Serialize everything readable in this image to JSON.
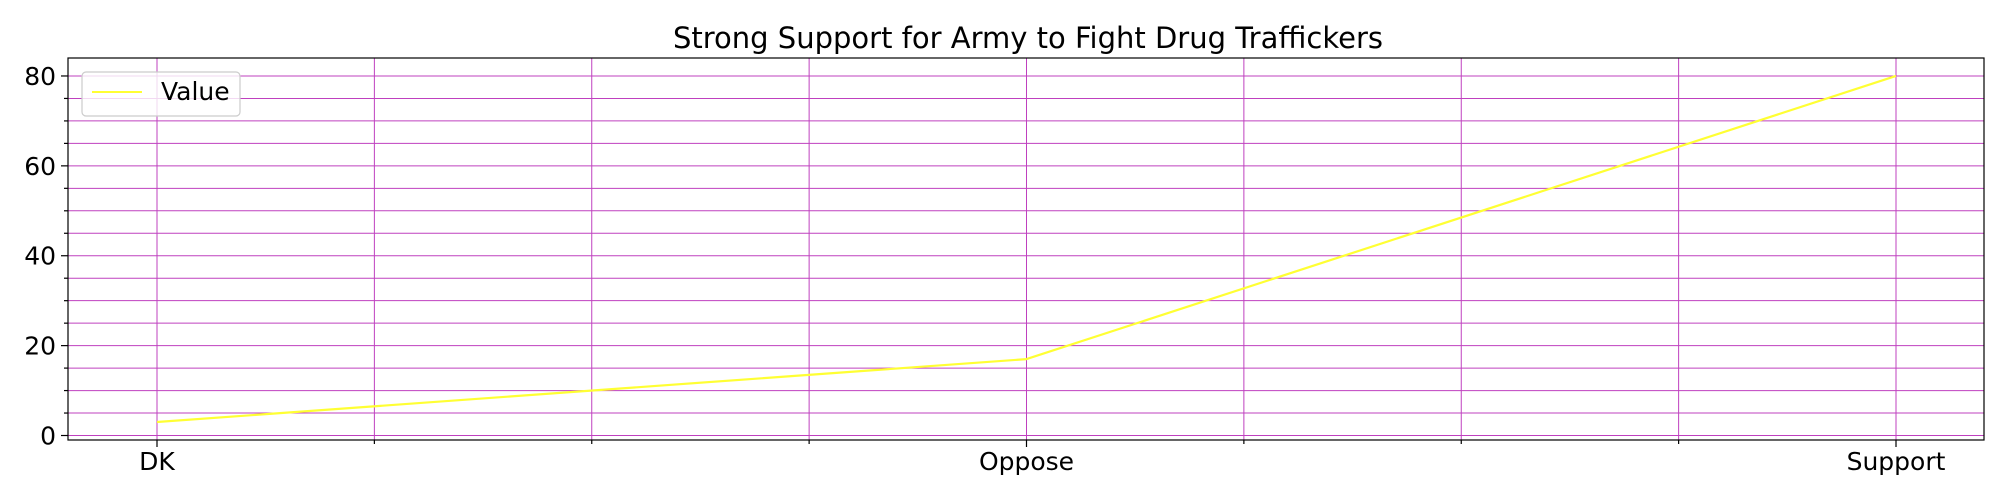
{
  "chart_data": {
    "type": "line",
    "title": "Strong Support for Army to Fight Drug Traffickers",
    "categories": [
      "DK",
      "Oppose",
      "Support"
    ],
    "series": [
      {
        "name": "Value",
        "values": [
          3,
          17,
          80
        ],
        "color": "#ffff33"
      }
    ],
    "xlabel": "",
    "ylabel": "",
    "ylim": [
      -1,
      84
    ],
    "yticks": [
      0,
      20,
      40,
      60,
      80
    ],
    "y_minor_step": 5,
    "x_minor_per_interval": 4,
    "grid": true,
    "grid_color": "#bf40bf",
    "legend_position": "upper-left"
  }
}
